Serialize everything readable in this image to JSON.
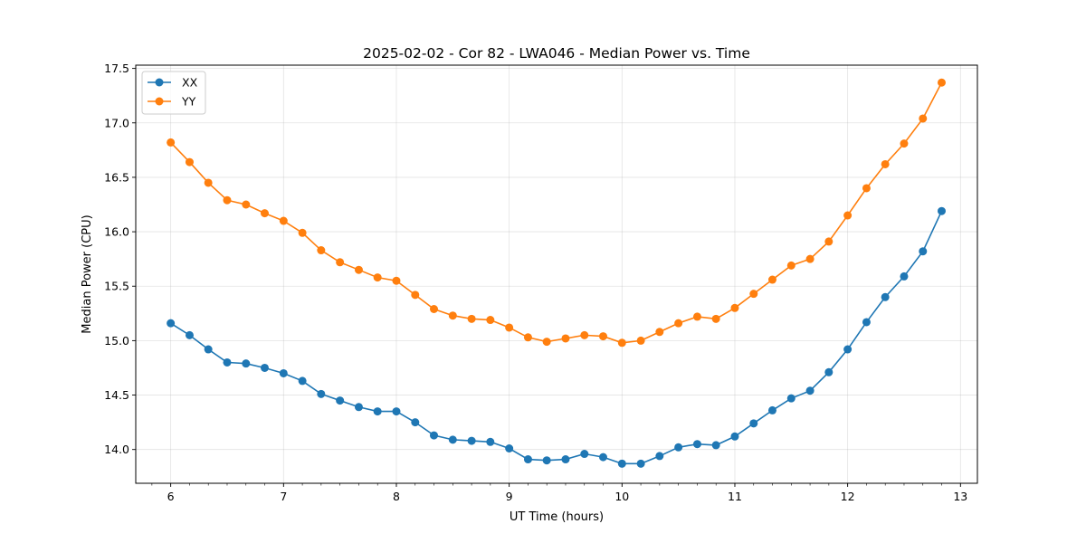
{
  "chart_data": {
    "type": "line",
    "title": "2025-02-02 - Cor 82 - LWA046 - Median Power vs. Time",
    "xlabel": "UT Time (hours)",
    "ylabel": "Median Power (CPU)",
    "xlim": [
      5.69,
      13.15
    ],
    "ylim": [
      13.69,
      17.53
    ],
    "xticks": [
      6,
      7,
      8,
      9,
      10,
      11,
      12,
      13
    ],
    "xtick_labels": [
      "6",
      "7",
      "8",
      "9",
      "10",
      "11",
      "12",
      "13"
    ],
    "yticks": [
      14.0,
      14.5,
      15.0,
      15.5,
      16.0,
      16.5,
      17.0,
      17.5
    ],
    "ytick_labels": [
      "14.0",
      "14.5",
      "15.0",
      "15.5",
      "16.0",
      "16.5",
      "17.0",
      "17.5"
    ],
    "grid": true,
    "legend": "upper left",
    "x": [
      6.0,
      6.167,
      6.333,
      6.5,
      6.667,
      6.833,
      7.0,
      7.167,
      7.333,
      7.5,
      7.667,
      7.833,
      8.0,
      8.167,
      8.333,
      8.5,
      8.667,
      8.833,
      9.0,
      9.167,
      9.333,
      9.5,
      9.667,
      9.833,
      10.0,
      10.167,
      10.333,
      10.5,
      10.667,
      10.833,
      11.0,
      11.167,
      11.333,
      11.5,
      11.667,
      11.833,
      12.0,
      12.167,
      12.333,
      12.5,
      12.667,
      12.833
    ],
    "series": [
      {
        "name": "XX",
        "color": "#1f77b4",
        "values": [
          15.16,
          15.05,
          14.92,
          14.8,
          14.79,
          14.75,
          14.7,
          14.63,
          14.51,
          14.45,
          14.39,
          14.35,
          14.35,
          14.25,
          14.13,
          14.09,
          14.08,
          14.07,
          14.01,
          13.91,
          13.9,
          13.91,
          13.96,
          13.93,
          13.87,
          13.87,
          13.94,
          14.02,
          14.05,
          14.04,
          14.12,
          14.24,
          14.36,
          14.47,
          14.54,
          14.71,
          14.92,
          15.17,
          15.4,
          15.59,
          15.82,
          16.19
        ]
      },
      {
        "name": "YY",
        "color": "#ff7f0e",
        "values": [
          16.82,
          16.64,
          16.45,
          16.29,
          16.25,
          16.17,
          16.1,
          15.99,
          15.83,
          15.72,
          15.65,
          15.58,
          15.55,
          15.42,
          15.29,
          15.23,
          15.2,
          15.19,
          15.12,
          15.03,
          14.99,
          15.02,
          15.05,
          15.04,
          14.98,
          15.0,
          15.08,
          15.16,
          15.22,
          15.2,
          15.3,
          15.43,
          15.56,
          15.69,
          15.75,
          15.91,
          16.15,
          16.4,
          16.62,
          16.81,
          17.04,
          17.37
        ]
      }
    ]
  }
}
